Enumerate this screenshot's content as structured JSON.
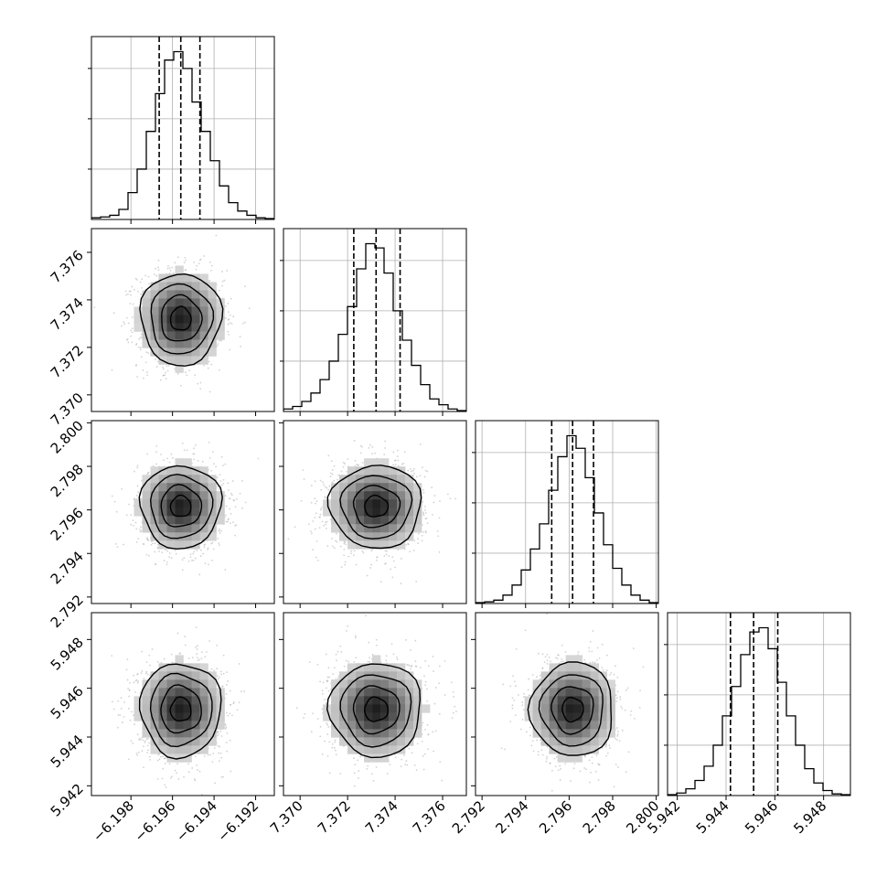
{
  "chart_data": {
    "type": "corner",
    "grid": true,
    "parameters": [
      {
        "ticks": [
          -6.198,
          -6.196,
          -6.194,
          -6.192
        ],
        "tick_labels": [
          "−6.198",
          "−6.196",
          "−6.194",
          "−6.192"
        ],
        "range": [
          -6.1999,
          -6.1911
        ],
        "quantiles": [
          -6.19664,
          -6.1956,
          -6.19468
        ]
      },
      {
        "ticks": [
          7.37,
          7.372,
          7.374,
          7.376
        ],
        "tick_labels": [
          "7.370",
          "7.372",
          "7.374",
          "7.376"
        ],
        "range": [
          7.3693,
          7.377
        ],
        "quantiles": [
          7.37226,
          7.3732,
          7.37421
        ]
      },
      {
        "ticks": [
          2.792,
          2.794,
          2.796,
          2.798,
          2.8
        ],
        "tick_labels": [
          "2.792",
          "2.794",
          "2.796",
          "2.798",
          "2.800"
        ],
        "range": [
          2.7917,
          2.8001
        ],
        "quantiles": [
          2.7952,
          2.79616,
          2.79712
        ]
      },
      {
        "ticks": [
          5.942,
          5.944,
          5.946,
          5.948
        ],
        "tick_labels": [
          "5.942",
          "5.944",
          "5.946",
          "5.948"
        ],
        "range": [
          5.9416,
          5.9491
        ],
        "quantiles": [
          5.94418,
          5.94513,
          5.94612
        ]
      }
    ],
    "histograms": [
      {
        "counts": [
          2,
          3,
          5,
          12,
          32,
          60,
          105,
          150,
          190,
          200,
          180,
          140,
          105,
          70,
          40,
          20,
          10,
          5,
          2,
          1
        ]
      },
      {
        "counts": [
          3,
          6,
          12,
          22,
          38,
          60,
          92,
          125,
          170,
          200,
          195,
          165,
          120,
          85,
          55,
          32,
          15,
          8,
          3,
          1
        ]
      },
      {
        "counts": [
          1,
          2,
          4,
          10,
          22,
          40,
          65,
          95,
          135,
          175,
          200,
          185,
          150,
          108,
          70,
          42,
          22,
          10,
          4,
          1
        ]
      },
      {
        "counts": [
          1,
          3,
          8,
          18,
          35,
          60,
          95,
          130,
          168,
          195,
          200,
          175,
          135,
          95,
          60,
          32,
          15,
          6,
          2,
          1
        ]
      }
    ],
    "scatter_samples_per_panel": 1400,
    "contour_levels": [
      0.12,
      0.39,
      0.68,
      0.86
    ],
    "colors": {
      "line": "#000000",
      "points": "#b4b4b4",
      "grid": "#b0b0b0"
    }
  }
}
